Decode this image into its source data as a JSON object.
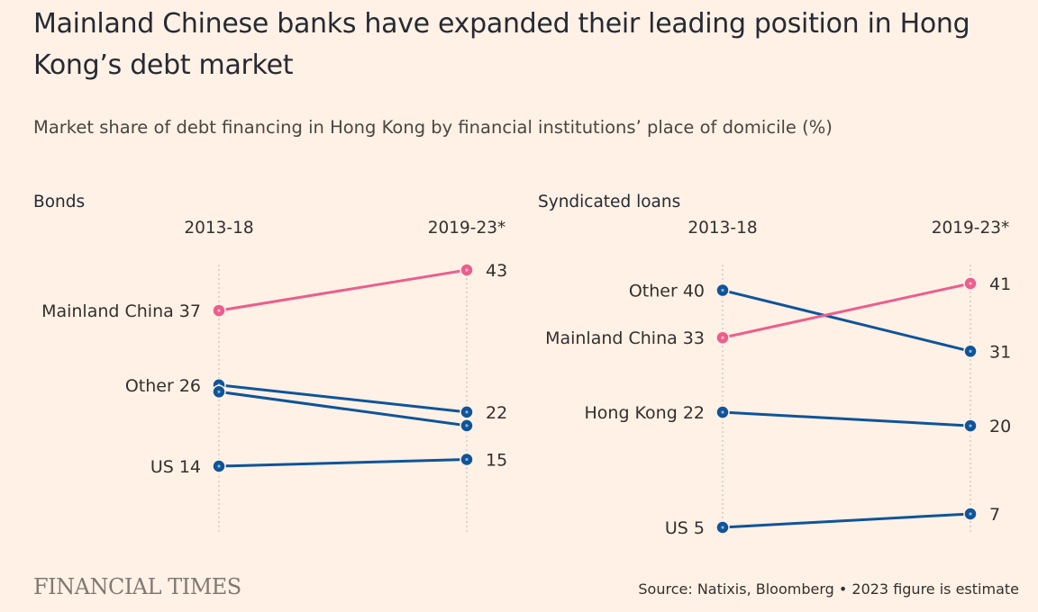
{
  "title": "Mainland Chinese banks have expanded their leading position in Hong Kong’s debt market",
  "subtitle": "Market share of debt financing in Hong Kong by financial institutions’ place of domicile (%)",
  "source": "Source: Natixis, Bloomberg • 2023 figure is estimate",
  "logo_text": "FINANCIAL TIMES",
  "colors": {
    "highlight": "#eb5e8d",
    "other": "#0f5499",
    "background": "#fff1e5",
    "gridline": "#d9cbbd"
  },
  "chart_data": [
    {
      "type": "slope",
      "panel_title": "Bonds",
      "periods": [
        "2013-18",
        "2019-23*"
      ],
      "y_range": [
        5,
        45
      ],
      "series": [
        {
          "name": "Mainland China",
          "values": [
            37,
            43
          ],
          "left_label": "Mainland China 37",
          "right_label": "43",
          "highlight": true
        },
        {
          "name": "Other",
          "values": [
            26,
            22
          ],
          "left_label": "Other 26",
          "right_label": "22",
          "highlight": false
        },
        {
          "values": [
            25,
            20
          ],
          "left_label": "",
          "right_label": "",
          "highlight": false
        },
        {
          "name": "US",
          "values": [
            14,
            15
          ],
          "left_label": "US 14",
          "right_label": "15",
          "highlight": false
        }
      ]
    },
    {
      "type": "slope",
      "panel_title": "Syndicated loans",
      "periods": [
        "2013-18",
        "2019-23*"
      ],
      "y_range": [
        4,
        42
      ],
      "series": [
        {
          "name": "Other",
          "values": [
            40,
            31
          ],
          "left_label": "Other 40",
          "right_label": "31",
          "highlight": false
        },
        {
          "name": "Mainland China",
          "values": [
            33,
            41
          ],
          "left_label": "Mainland China 33",
          "right_label": "41",
          "highlight": true
        },
        {
          "name": "Hong Kong",
          "values": [
            22,
            20
          ],
          "left_label": "Hong Kong 22",
          "right_label": "20",
          "highlight": false
        },
        {
          "name": "US",
          "values": [
            5,
            7
          ],
          "left_label": "US 5",
          "right_label": "7",
          "highlight": false
        }
      ]
    }
  ]
}
